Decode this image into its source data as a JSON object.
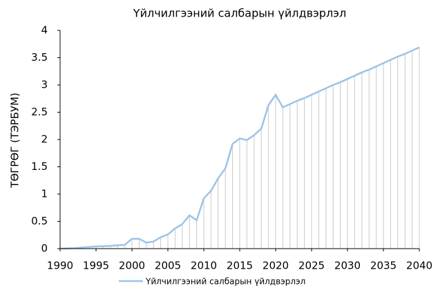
{
  "chart_data": {
    "type": "line",
    "title": "Үйлчилгээний салбарын үйлдвэрлэл",
    "y_label": "ТӨГРӨГ (ТЭРБУМ)",
    "x": [
      1990,
      1991,
      1992,
      1993,
      1994,
      1995,
      1996,
      1997,
      1998,
      1999,
      2000,
      2001,
      2002,
      2003,
      2004,
      2005,
      2006,
      2007,
      2008,
      2009,
      2010,
      2011,
      2012,
      2013,
      2014,
      2015,
      2016,
      2017,
      2018,
      2019,
      2020,
      2021,
      2022,
      2023,
      2024,
      2025,
      2026,
      2027,
      2028,
      2029,
      2030,
      2031,
      2032,
      2033,
      2034,
      2035,
      2036,
      2037,
      2038,
      2039,
      2040
    ],
    "series": [
      {
        "name": "Үйлчилгээний салбарын үйлдвэрлэл",
        "color": "#9dc3e6",
        "values": [
          0,
          0.005,
          0.01,
          0.02,
          0.03,
          0.04,
          0.045,
          0.05,
          0.06,
          0.07,
          0.18,
          0.18,
          0.11,
          0.13,
          0.21,
          0.26,
          0.37,
          0.45,
          0.61,
          0.52,
          0.92,
          1.06,
          1.29,
          1.47,
          1.92,
          2.02,
          1.99,
          2.08,
          2.2,
          2.63,
          2.82,
          2.59,
          2.65,
          2.71,
          2.76,
          2.82,
          2.88,
          2.94,
          3.0,
          3.05,
          3.11,
          3.17,
          3.23,
          3.28,
          3.34,
          3.4,
          3.46,
          3.52,
          3.57,
          3.63,
          3.69
        ]
      }
    ],
    "xlim": [
      1990,
      2040
    ],
    "xticks": [
      1990,
      1995,
      2000,
      2005,
      2010,
      2015,
      2020,
      2025,
      2030,
      2035,
      2040
    ],
    "ylim": [
      0,
      4
    ],
    "yticks": [
      0,
      0.5,
      1,
      1.5,
      2,
      2.5,
      3,
      3.5,
      4
    ],
    "drop_lines": true,
    "drop_line_color": "#c8c8c8",
    "legend": "bottom"
  }
}
